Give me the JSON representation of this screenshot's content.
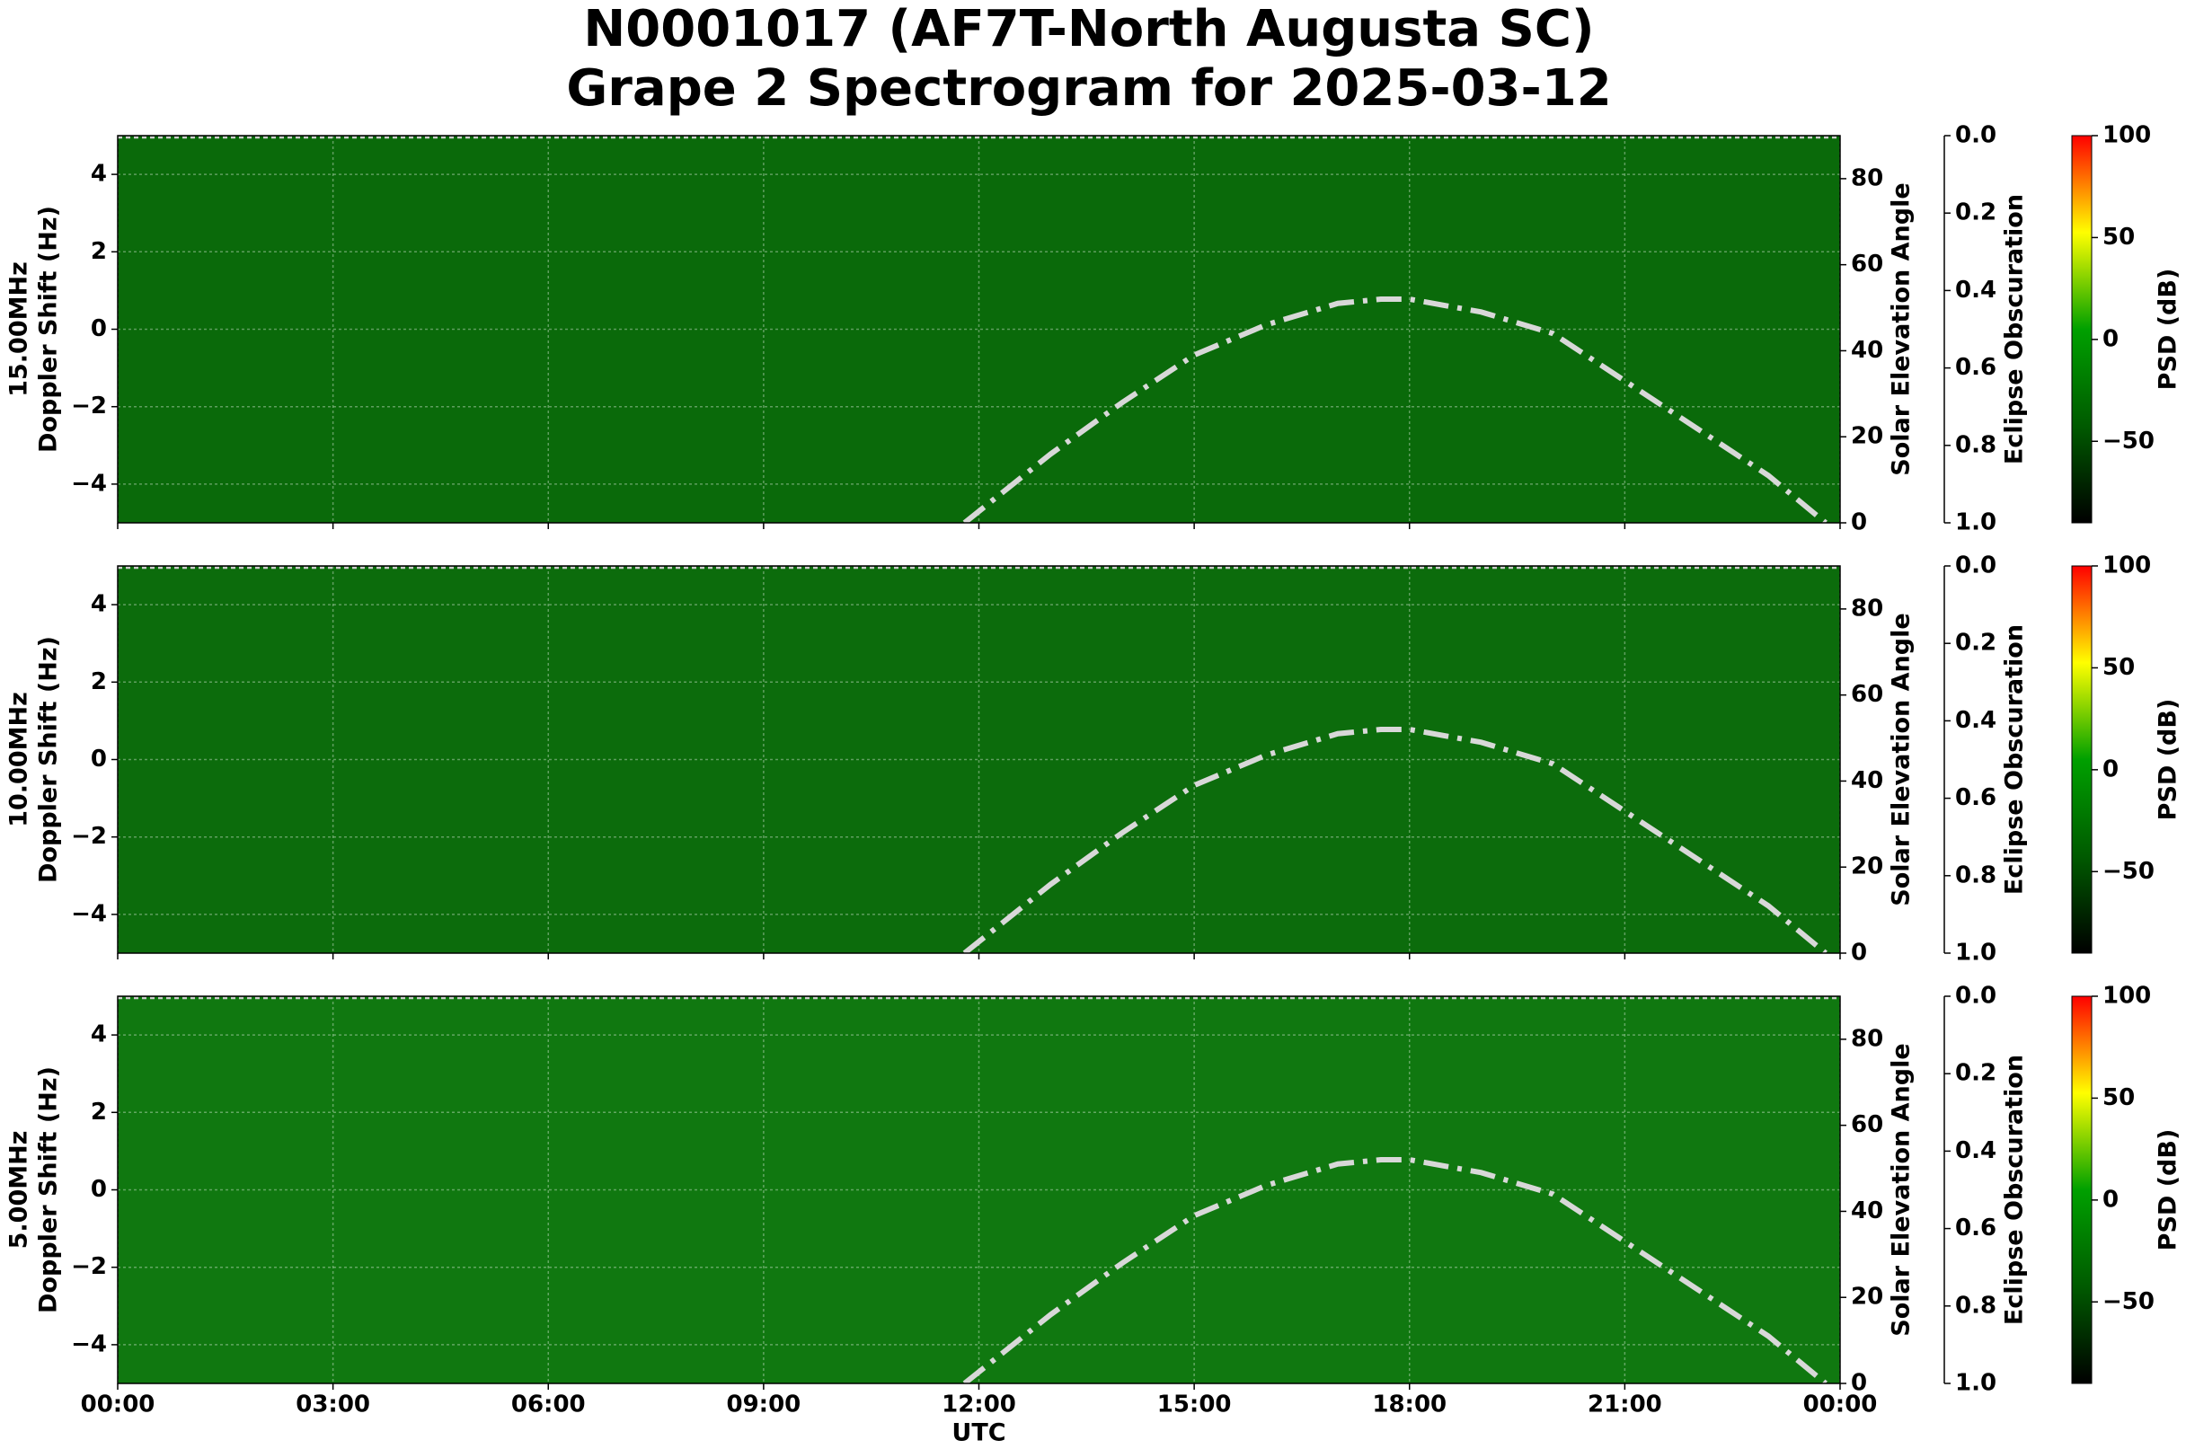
{
  "header": {
    "title": "N0001017 (AF7T-North Augusta SC)",
    "subtitle": "Grape 2 Spectrogram for 2025-03-12"
  },
  "x_axis": {
    "label": "UTC",
    "xlim": [
      0,
      24
    ],
    "xticks": [
      {
        "value": 0,
        "label": "00:00"
      },
      {
        "value": 3,
        "label": "03:00"
      },
      {
        "value": 6,
        "label": "06:00"
      },
      {
        "value": 9,
        "label": "09:00"
      },
      {
        "value": 12,
        "label": "12:00"
      },
      {
        "value": 15,
        "label": "15:00"
      },
      {
        "value": 18,
        "label": "18:00"
      },
      {
        "value": 21,
        "label": "21:00"
      },
      {
        "value": 24,
        "label": "00:00"
      }
    ]
  },
  "chart_data": [
    {
      "type": "spectrogram",
      "frequency_label": "15.00MHz",
      "ylabel": "Doppler Shift (Hz)",
      "ylim": [
        -5,
        5
      ],
      "yticks": [
        {
          "value": -4,
          "label": "−4"
        },
        {
          "value": -2,
          "label": "−2"
        },
        0,
        2,
        4
      ],
      "y2label": "Solar Elevation Angle",
      "y2lim": [
        0,
        90
      ],
      "y2ticks": [
        0,
        20,
        40,
        60,
        80
      ],
      "eclipse_label": "Eclipse Obscuration",
      "eclipse_lim": [
        1,
        0
      ],
      "eclipse_ticks": [
        {
          "value": 0,
          "label": "0.0"
        },
        0.2,
        0.4,
        0.6,
        0.8,
        {
          "value": 1,
          "label": "1.0"
        }
      ],
      "colorbar_label": "PSD (dB)",
      "clim": [
        -90,
        100
      ],
      "cticks": [
        {
          "value": -50,
          "label": "−50"
        },
        0,
        50,
        100
      ],
      "colormap": [
        "#000000",
        "#005a00",
        "#00a000",
        "#ffff00",
        "#ff0000"
      ],
      "background": "#0a6a0a",
      "grid": true,
      "solar_elevation": {
        "axis": "y2",
        "color": "#d8d8d8",
        "x": [
          11.8,
          13,
          14,
          15,
          16,
          17,
          17.6,
          18,
          19,
          20,
          21,
          22,
          23,
          23.8
        ],
        "values": [
          0,
          16,
          28,
          39,
          46,
          51,
          52,
          52,
          49,
          44,
          33,
          22,
          11,
          0
        ]
      },
      "eclipse": {
        "color": "#cccccc",
        "x": [
          0,
          24
        ],
        "values": [
          0,
          0
        ]
      }
    },
    {
      "type": "spectrogram",
      "frequency_label": "10.00MHz",
      "ylabel": "Doppler Shift (Hz)",
      "ylim": [
        -5,
        5
      ],
      "yticks": [
        {
          "value": -4,
          "label": "−4"
        },
        {
          "value": -2,
          "label": "−2"
        },
        0,
        2,
        4
      ],
      "y2label": "Solar Elevation Angle",
      "y2lim": [
        0,
        90
      ],
      "y2ticks": [
        0,
        20,
        40,
        60,
        80
      ],
      "eclipse_label": "Eclipse Obscuration",
      "eclipse_lim": [
        1,
        0
      ],
      "eclipse_ticks": [
        {
          "value": 0,
          "label": "0.0"
        },
        0.2,
        0.4,
        0.6,
        0.8,
        {
          "value": 1,
          "label": "1.0"
        }
      ],
      "colorbar_label": "PSD (dB)",
      "clim": [
        -90,
        100
      ],
      "cticks": [
        {
          "value": -50,
          "label": "−50"
        },
        0,
        50,
        100
      ],
      "colormap": [
        "#000000",
        "#005a00",
        "#00a000",
        "#ffff00",
        "#ff0000"
      ],
      "background": "#0c6c0c",
      "grid": true,
      "solar_elevation": {
        "axis": "y2",
        "color": "#d8d8d8",
        "x": [
          11.8,
          13,
          14,
          15,
          16,
          17,
          17.6,
          18,
          19,
          20,
          21,
          22,
          23,
          23.8
        ],
        "values": [
          0,
          16,
          28,
          39,
          46,
          51,
          52,
          52,
          49,
          44,
          33,
          22,
          11,
          0
        ]
      },
      "eclipse": {
        "color": "#cccccc",
        "x": [
          0,
          24
        ],
        "values": [
          0,
          0
        ]
      }
    },
    {
      "type": "spectrogram",
      "frequency_label": "5.00MHz",
      "ylabel": "Doppler Shift (Hz)",
      "ylim": [
        -5,
        5
      ],
      "yticks": [
        {
          "value": -4,
          "label": "−4"
        },
        {
          "value": -2,
          "label": "−2"
        },
        0,
        2,
        4
      ],
      "y2label": "Solar Elevation Angle",
      "y2lim": [
        0,
        90
      ],
      "y2ticks": [
        0,
        20,
        40,
        60,
        80
      ],
      "eclipse_label": "Eclipse Obscuration",
      "eclipse_lim": [
        1,
        0
      ],
      "eclipse_ticks": [
        {
          "value": 0,
          "label": "0.0"
        },
        0.2,
        0.4,
        0.6,
        0.8,
        {
          "value": 1,
          "label": "1.0"
        }
      ],
      "colorbar_label": "PSD (dB)",
      "clim": [
        -90,
        100
      ],
      "cticks": [
        {
          "value": -50,
          "label": "−50"
        },
        0,
        50,
        100
      ],
      "colormap": [
        "#000000",
        "#005a00",
        "#00a000",
        "#ffff00",
        "#ff0000"
      ],
      "background": "#107810",
      "grid": true,
      "solar_elevation": {
        "axis": "y2",
        "color": "#d8d8d8",
        "x": [
          11.8,
          13,
          14,
          15,
          16,
          17,
          17.6,
          18,
          19,
          20,
          21,
          22,
          23,
          23.8
        ],
        "values": [
          0,
          16,
          28,
          39,
          46,
          51,
          52,
          52,
          49,
          44,
          33,
          22,
          11,
          0
        ]
      },
      "eclipse": {
        "color": "#cccccc",
        "x": [
          0,
          24
        ],
        "values": [
          0,
          0
        ]
      }
    }
  ]
}
